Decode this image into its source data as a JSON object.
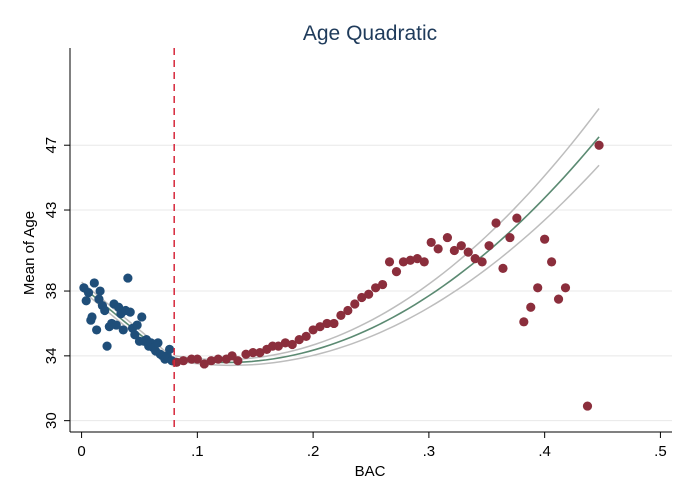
{
  "chart_data": {
    "type": "scatter",
    "title": "Age Quadratic",
    "xlabel": "BAC",
    "ylabel": "Mean of Age",
    "xlim": [
      -0.01,
      0.51
    ],
    "ylim": [
      29.3,
      53.0
    ],
    "x_ticks": [
      0,
      0.1,
      0.2,
      0.3,
      0.4,
      0.5
    ],
    "x_tick_labels": [
      "0",
      ".1",
      ".2",
      ".3",
      ".4",
      ".5"
    ],
    "y_ticks": [
      30,
      34,
      38,
      43,
      47
    ],
    "y_tick_labels": [
      "30",
      "34",
      "38",
      "43",
      "47"
    ],
    "grid": "horizontal",
    "cutoff": {
      "x": 0.08,
      "color": "#d6263a",
      "style": "dashed"
    },
    "colors": {
      "below": "#1f4e79",
      "above": "#8b2e3c",
      "fit": "#5b8a72",
      "ci": "#bdbdbd",
      "title": "#1f3b5b",
      "grid": "#e8e8e8"
    },
    "series": [
      {
        "color": "#1f4e79",
        "points": [
          [
            0.002,
            38.2
          ],
          [
            0.004,
            37.4
          ],
          [
            0.006,
            37.9
          ],
          [
            0.008,
            36.2
          ],
          [
            0.009,
            36.4
          ],
          [
            0.011,
            38.5
          ],
          [
            0.013,
            35.6
          ],
          [
            0.015,
            37.5
          ],
          [
            0.016,
            38.0
          ],
          [
            0.018,
            37.1
          ],
          [
            0.02,
            36.8
          ],
          [
            0.022,
            34.6
          ],
          [
            0.024,
            35.8
          ],
          [
            0.026,
            36.0
          ],
          [
            0.028,
            37.2
          ],
          [
            0.03,
            35.9
          ],
          [
            0.032,
            37.0
          ],
          [
            0.034,
            36.6
          ],
          [
            0.036,
            35.6
          ],
          [
            0.038,
            36.8
          ],
          [
            0.04,
            38.8
          ],
          [
            0.042,
            36.7
          ],
          [
            0.044,
            35.7
          ],
          [
            0.046,
            35.3
          ],
          [
            0.048,
            35.9
          ],
          [
            0.05,
            34.9
          ],
          [
            0.052,
            36.4
          ],
          [
            0.054,
            34.9
          ],
          [
            0.056,
            35.0
          ],
          [
            0.058,
            34.6
          ],
          [
            0.06,
            34.8
          ],
          [
            0.062,
            34.5
          ],
          [
            0.064,
            34.3
          ],
          [
            0.066,
            34.8
          ],
          [
            0.068,
            34.1
          ],
          [
            0.07,
            34.0
          ],
          [
            0.072,
            33.8
          ],
          [
            0.074,
            34.0
          ],
          [
            0.076,
            34.4
          ],
          [
            0.078,
            33.7
          ]
        ]
      },
      {
        "color": "#8b2e3c",
        "points": [
          [
            0.082,
            33.6
          ],
          [
            0.088,
            33.7
          ],
          [
            0.095,
            33.8
          ],
          [
            0.1,
            33.8
          ],
          [
            0.106,
            33.5
          ],
          [
            0.112,
            33.7
          ],
          [
            0.118,
            33.8
          ],
          [
            0.125,
            33.8
          ],
          [
            0.13,
            34.0
          ],
          [
            0.135,
            33.7
          ],
          [
            0.142,
            34.1
          ],
          [
            0.148,
            34.2
          ],
          [
            0.154,
            34.2
          ],
          [
            0.16,
            34.4
          ],
          [
            0.165,
            34.6
          ],
          [
            0.17,
            34.6
          ],
          [
            0.176,
            34.8
          ],
          [
            0.182,
            34.7
          ],
          [
            0.188,
            35.0
          ],
          [
            0.194,
            35.2
          ],
          [
            0.2,
            35.6
          ],
          [
            0.206,
            35.8
          ],
          [
            0.212,
            36.0
          ],
          [
            0.218,
            36.0
          ],
          [
            0.224,
            36.5
          ],
          [
            0.23,
            36.8
          ],
          [
            0.236,
            37.2
          ],
          [
            0.242,
            37.6
          ],
          [
            0.248,
            37.8
          ],
          [
            0.254,
            38.2
          ],
          [
            0.26,
            38.4
          ],
          [
            0.266,
            39.8
          ],
          [
            0.272,
            39.2
          ],
          [
            0.278,
            39.8
          ],
          [
            0.284,
            39.9
          ],
          [
            0.29,
            40.0
          ],
          [
            0.296,
            39.8
          ],
          [
            0.302,
            41.0
          ],
          [
            0.308,
            40.6
          ],
          [
            0.316,
            41.3
          ],
          [
            0.322,
            40.5
          ],
          [
            0.328,
            40.8
          ],
          [
            0.334,
            40.4
          ],
          [
            0.34,
            40.0
          ],
          [
            0.346,
            39.8
          ],
          [
            0.352,
            40.8
          ],
          [
            0.358,
            42.2
          ],
          [
            0.364,
            39.4
          ],
          [
            0.37,
            41.3
          ],
          [
            0.376,
            42.5
          ],
          [
            0.382,
            36.1
          ],
          [
            0.388,
            37.0
          ],
          [
            0.394,
            38.2
          ],
          [
            0.4,
            41.2
          ],
          [
            0.406,
            39.8
          ],
          [
            0.412,
            37.5
          ],
          [
            0.418,
            38.2
          ],
          [
            0.437,
            30.9
          ],
          [
            0.447,
            47.0
          ]
        ]
      }
    ],
    "fit": [
      {
        "x_range": [
          0,
          0.08
        ],
        "coef": [
          38.3,
          -59.0,
          0
        ],
        "ci_half_width": 0.25
      },
      {
        "x_range": [
          0.08,
          0.447
        ],
        "coef": [
          33.86,
          -12.04,
          134.2
        ],
        "ci_half_width_start": 0.15,
        "ci_half_width_end": 1.75
      }
    ]
  }
}
